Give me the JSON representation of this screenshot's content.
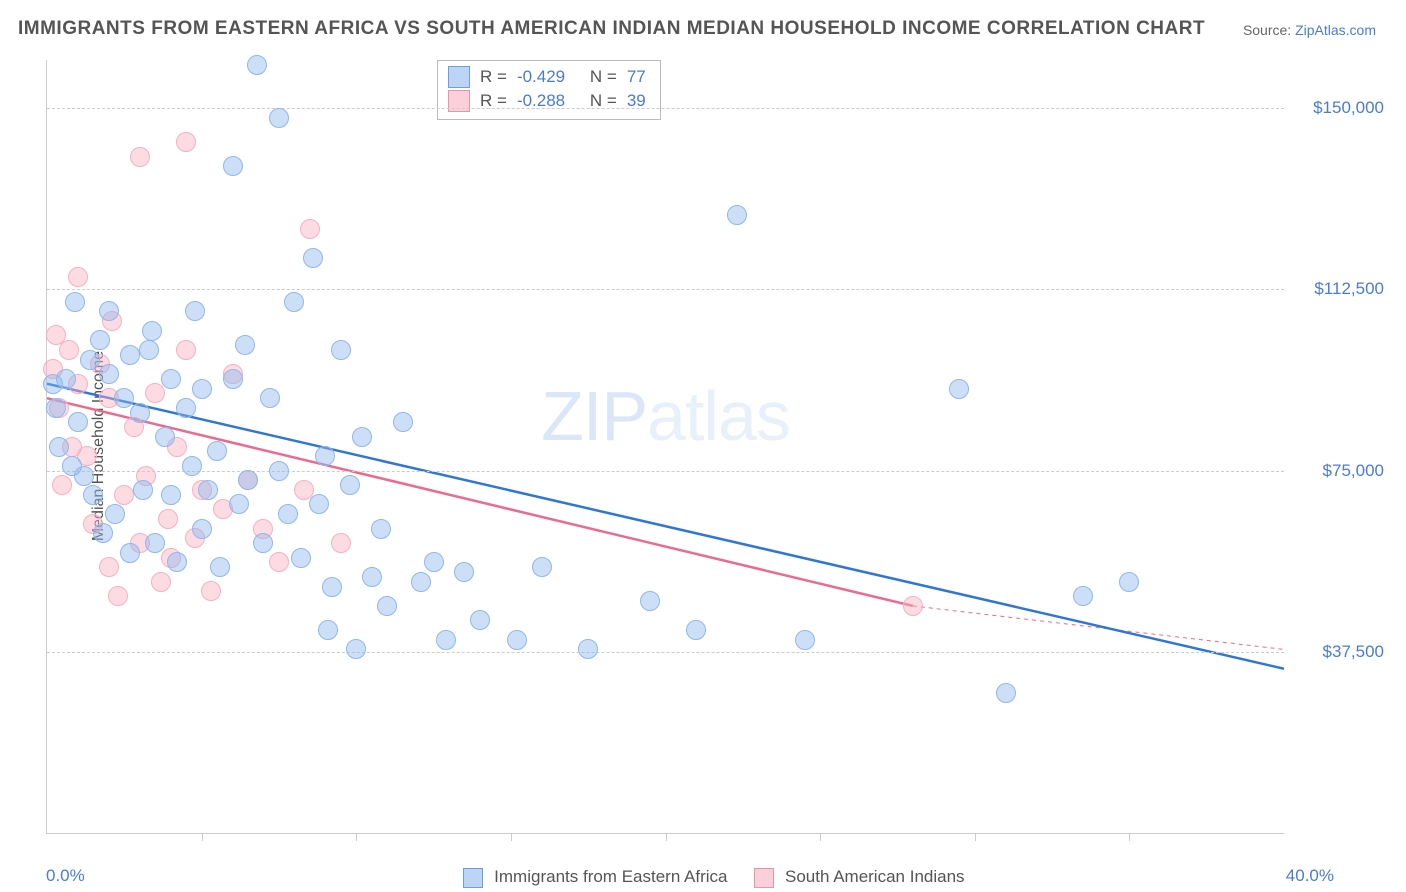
{
  "title": "IMMIGRANTS FROM EASTERN AFRICA VS SOUTH AMERICAN INDIAN MEDIAN HOUSEHOLD INCOME CORRELATION CHART",
  "source": {
    "label": "Source: ",
    "link": "ZipAtlas.com"
  },
  "y_axis_label": "Median Household Income",
  "watermark": {
    "bold": "ZIP",
    "light": "atlas"
  },
  "plot": {
    "x_min": 0,
    "x_max": 40,
    "y_min": 0,
    "y_max": 160000,
    "x_ticks": [
      5,
      10,
      15,
      20,
      25,
      30,
      35
    ],
    "y_gridlines": [
      37500,
      75000,
      112500,
      150000
    ],
    "x_tick_labels": {
      "min": "0.0%",
      "max": "40.0%"
    },
    "y_tick_labels": [
      "$37,500",
      "$75,000",
      "$112,500",
      "$150,000"
    ],
    "marker_radius": 10,
    "background_color": "#ffffff",
    "grid_color": "#cccccc",
    "series_a": {
      "name": "Immigrants from Eastern Africa",
      "color_fill": "rgba(143,184,238,0.45)",
      "color_stroke": "#8fb8ee",
      "line_color": "#2f76d6",
      "line_width": 2.5,
      "trend": {
        "x1": 0,
        "y1": 93000,
        "x2": 40,
        "y2": 34000
      },
      "R": "-0.429",
      "N": "77",
      "points": [
        [
          0.2,
          93000
        ],
        [
          0.3,
          88000
        ],
        [
          0.4,
          80000
        ],
        [
          0.6,
          94000
        ],
        [
          0.8,
          76000
        ],
        [
          0.9,
          110000
        ],
        [
          1.0,
          85000
        ],
        [
          1.2,
          74000
        ],
        [
          1.4,
          98000
        ],
        [
          1.5,
          70000
        ],
        [
          1.7,
          102000
        ],
        [
          1.8,
          62000
        ],
        [
          2.0,
          95000
        ],
        [
          2.0,
          108000
        ],
        [
          2.2,
          66000
        ],
        [
          2.5,
          90000
        ],
        [
          2.7,
          58000
        ],
        [
          2.7,
          99000
        ],
        [
          3.0,
          87000
        ],
        [
          3.1,
          71000
        ],
        [
          3.3,
          100000
        ],
        [
          3.4,
          104000
        ],
        [
          3.5,
          60000
        ],
        [
          3.8,
          82000
        ],
        [
          4.0,
          94000
        ],
        [
          4.0,
          70000
        ],
        [
          4.2,
          56000
        ],
        [
          4.5,
          88000
        ],
        [
          4.7,
          76000
        ],
        [
          4.8,
          108000
        ],
        [
          5.0,
          63000
        ],
        [
          5.0,
          92000
        ],
        [
          5.2,
          71000
        ],
        [
          5.5,
          79000
        ],
        [
          5.6,
          55000
        ],
        [
          6.0,
          94000
        ],
        [
          6.0,
          138000
        ],
        [
          6.2,
          68000
        ],
        [
          6.4,
          101000
        ],
        [
          6.5,
          73000
        ],
        [
          6.8,
          159000
        ],
        [
          7.0,
          60000
        ],
        [
          7.2,
          90000
        ],
        [
          7.5,
          148000
        ],
        [
          7.5,
          75000
        ],
        [
          7.8,
          66000
        ],
        [
          8.0,
          110000
        ],
        [
          8.2,
          57000
        ],
        [
          8.6,
          119000
        ],
        [
          8.8,
          68000
        ],
        [
          9.0,
          78000
        ],
        [
          9.1,
          42000
        ],
        [
          9.2,
          51000
        ],
        [
          9.5,
          100000
        ],
        [
          9.8,
          72000
        ],
        [
          10.0,
          38000
        ],
        [
          10.2,
          82000
        ],
        [
          10.5,
          53000
        ],
        [
          10.8,
          63000
        ],
        [
          11.0,
          47000
        ],
        [
          11.5,
          85000
        ],
        [
          12.1,
          52000
        ],
        [
          12.5,
          56000
        ],
        [
          12.9,
          40000
        ],
        [
          13.5,
          54000
        ],
        [
          14.0,
          44000
        ],
        [
          15.2,
          40000
        ],
        [
          16.0,
          55000
        ],
        [
          17.5,
          38000
        ],
        [
          19.5,
          48000
        ],
        [
          21.0,
          42000
        ],
        [
          22.3,
          128000
        ],
        [
          24.5,
          40000
        ],
        [
          29.5,
          92000
        ],
        [
          31.0,
          29000
        ],
        [
          33.5,
          49000
        ],
        [
          35.0,
          52000
        ]
      ]
    },
    "series_b": {
      "name": "South American Indians",
      "color_fill": "rgba(248,176,193,0.45)",
      "color_stroke": "#f8b0c1",
      "line_color": "#ec6a8e",
      "line_width": 2.5,
      "trend": {
        "x1": 0,
        "y1": 90000,
        "x2": 28,
        "y2": 47000
      },
      "trend_ext": {
        "x1": 28,
        "y1": 47000,
        "x2": 40,
        "y2": 38000
      },
      "R": "-0.288",
      "N": "39",
      "points": [
        [
          0.2,
          96000
        ],
        [
          0.3,
          103000
        ],
        [
          0.4,
          88000
        ],
        [
          0.5,
          72000
        ],
        [
          0.7,
          100000
        ],
        [
          0.8,
          80000
        ],
        [
          1.0,
          93000
        ],
        [
          1.0,
          115000
        ],
        [
          1.3,
          78000
        ],
        [
          1.5,
          64000
        ],
        [
          1.7,
          97000
        ],
        [
          2.0,
          90000
        ],
        [
          2.0,
          55000
        ],
        [
          2.1,
          106000
        ],
        [
          2.3,
          49000
        ],
        [
          2.5,
          70000
        ],
        [
          2.8,
          84000
        ],
        [
          3.0,
          60000
        ],
        [
          3.0,
          140000
        ],
        [
          3.2,
          74000
        ],
        [
          3.5,
          91000
        ],
        [
          3.7,
          52000
        ],
        [
          3.9,
          65000
        ],
        [
          4.0,
          57000
        ],
        [
          4.2,
          80000
        ],
        [
          4.5,
          100000
        ],
        [
          4.5,
          143000
        ],
        [
          4.8,
          61000
        ],
        [
          5.0,
          71000
        ],
        [
          5.3,
          50000
        ],
        [
          5.7,
          67000
        ],
        [
          6.0,
          95000
        ],
        [
          6.5,
          73000
        ],
        [
          7.0,
          63000
        ],
        [
          7.5,
          56000
        ],
        [
          8.3,
          71000
        ],
        [
          8.5,
          125000
        ],
        [
          9.5,
          60000
        ],
        [
          28.0,
          47000
        ]
      ]
    }
  },
  "corr_legend": {
    "R_label": "R =",
    "N_label": "N ="
  }
}
